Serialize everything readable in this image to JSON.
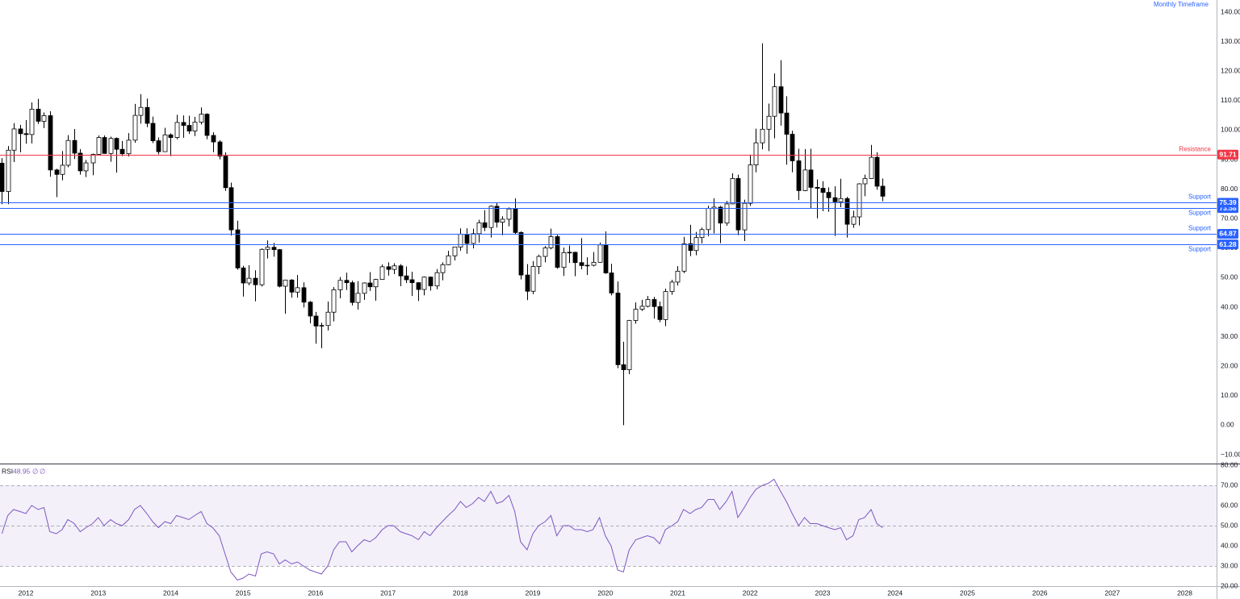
{
  "chart_data": [
    {
      "type": "candlestick",
      "annotation": "Monthly Timeframe",
      "x": [
        2011.67,
        2011.75,
        2011.83,
        2011.92,
        2012,
        2012.08,
        2012.17,
        2012.25,
        2012.33,
        2012.42,
        2012.5,
        2012.58,
        2012.67,
        2012.75,
        2012.83,
        2012.92,
        2013,
        2013.08,
        2013.17,
        2013.25,
        2013.33,
        2013.42,
        2013.5,
        2013.58,
        2013.67,
        2013.75,
        2013.83,
        2013.92,
        2014,
        2014.08,
        2014.17,
        2014.25,
        2014.33,
        2014.42,
        2014.5,
        2014.58,
        2014.67,
        2014.75,
        2014.83,
        2014.92,
        2015,
        2015.08,
        2015.17,
        2015.25,
        2015.33,
        2015.42,
        2015.5,
        2015.58,
        2015.67,
        2015.75,
        2015.83,
        2015.92,
        2016,
        2016.08,
        2016.17,
        2016.25,
        2016.33,
        2016.42,
        2016.5,
        2016.58,
        2016.67,
        2016.75,
        2016.83,
        2016.92,
        2017,
        2017.08,
        2017.17,
        2017.25,
        2017.33,
        2017.42,
        2017.5,
        2017.58,
        2017.67,
        2017.75,
        2017.83,
        2017.92,
        2018,
        2018.08,
        2018.17,
        2018.25,
        2018.33,
        2018.42,
        2018.5,
        2018.58,
        2018.67,
        2018.75,
        2018.83,
        2018.92,
        2019,
        2019.08,
        2019.17,
        2019.25,
        2019.33,
        2019.42,
        2019.5,
        2019.58,
        2019.67,
        2019.75,
        2019.83,
        2019.92,
        2020,
        2020.08,
        2020.17,
        2020.25,
        2020.33,
        2020.42,
        2020.5,
        2020.58,
        2020.67,
        2020.75,
        2020.83,
        2020.92,
        2021,
        2021.08,
        2021.17,
        2021.25,
        2021.33,
        2021.42,
        2021.5,
        2021.58,
        2021.67,
        2021.75,
        2021.83,
        2021.92,
        2022,
        2022.08,
        2022.17,
        2022.25,
        2022.33,
        2022.42,
        2022.5,
        2022.58,
        2022.67,
        2022.75,
        2022.83,
        2022.92,
        2023,
        2023.08,
        2023.17,
        2023.25,
        2023.33,
        2023.42,
        2023.5,
        2023.58,
        2023.67,
        2023.75,
        2023.83
      ],
      "open": [
        88.8,
        79.2,
        93.2,
        100.4,
        98.8,
        98.5,
        107.1,
        103.0,
        104.9,
        86.5,
        85.0,
        88.1,
        96.5,
        92.2,
        86.2,
        88.9,
        91.8,
        97.5,
        92.1,
        97.2,
        93.5,
        92.0,
        96.6,
        105.0,
        107.7,
        102.3,
        96.4,
        92.7,
        98.4,
        97.5,
        102.6,
        101.6,
        99.7,
        102.7,
        105.4,
        98.2,
        96.0,
        91.2,
        80.5,
        66.2,
        53.3,
        48.2,
        49.8,
        47.6,
        59.6,
        60.3,
        59.5,
        47.1,
        49.2,
        45.1,
        46.6,
        41.7,
        37.0,
        33.6,
        33.8,
        38.3,
        45.9,
        49.1,
        48.3,
        41.6,
        44.7,
        48.2,
        46.9,
        49.4,
        53.7,
        52.8,
        54.0,
        50.6,
        49.3,
        48.3,
        46.0,
        50.2,
        47.2,
        51.7,
        54.4,
        57.4,
        60.4,
        64.7,
        61.6,
        64.9,
        68.6,
        67.0,
        74.2,
        68.8,
        69.8,
        73.3,
        65.3,
        50.9,
        45.4,
        53.8,
        57.2,
        60.1,
        63.9,
        53.5,
        58.5,
        58.6,
        55.1,
        54.1,
        54.2,
        55.2,
        61.1,
        51.6,
        44.8,
        20.5,
        18.8,
        35.5,
        39.3,
        40.3,
        42.6,
        40.2,
        35.8,
        45.3,
        48.5,
        52.2,
        61.5,
        59.2,
        63.6,
        66.3,
        73.5,
        73.9,
        68.5,
        75.0,
        83.6,
        66.2,
        75.2,
        88.2,
        95.7,
        100.3,
        104.7,
        114.7,
        105.8,
        98.6,
        89.6,
        79.5,
        86.5,
        80.6,
        80.3,
        78.9,
        77.1,
        75.7,
        76.8,
        68.1,
        70.6,
        81.8,
        83.6,
        90.8,
        81.0
      ],
      "high": [
        90.5,
        94.6,
        102.4,
        101.8,
        103.4,
        109.4,
        110.6,
        106.0,
        106.4,
        86.9,
        92.9,
        98.3,
        100.4,
        93.6,
        89.9,
        92.1,
        98.2,
        98.2,
        97.8,
        97.5,
        96.3,
        99.0,
        108.9,
        112.2,
        110.7,
        104.6,
        97.5,
        100.8,
        98.9,
        105.2,
        105.0,
        104.9,
        104.5,
        107.7,
        105.7,
        99.3,
        96.6,
        92.5,
        82.2,
        69.3,
        54.0,
        54.2,
        52.5,
        59.9,
        62.6,
        61.8,
        59.7,
        49.3,
        49.5,
        50.9,
        48.4,
        42.1,
        38.4,
        34.7,
        41.9,
        46.8,
        50.2,
        51.7,
        49.0,
        48.8,
        48.4,
        51.9,
        49.6,
        54.5,
        55.2,
        54.9,
        54.6,
        53.8,
        52.0,
        48.5,
        50.4,
        50.4,
        52.9,
        55.2,
        59.1,
        60.5,
        66.7,
        66.7,
        66.6,
        69.6,
        72.9,
        74.5,
        75.3,
        70.8,
        73.8,
        76.9,
        65.7,
        54.6,
        55.6,
        57.8,
        60.7,
        66.6,
        64.5,
        60.2,
        60.9,
        58.8,
        63.4,
        56.9,
        58.7,
        61.9,
        65.7,
        54.7,
        48.7,
        28.3,
        35.7,
        41.6,
        42.5,
        43.8,
        43.5,
        41.9,
        46.3,
        49.3,
        53.9,
        63.8,
        67.9,
        65.5,
        67.0,
        74.4,
        76.9,
        74.3,
        76.0,
        85.4,
        84.9,
        76.4,
        91.7,
        100.5,
        129.4,
        109.0,
        119.2,
        123.7,
        111.5,
        99.8,
        93.7,
        93.6,
        93.7,
        83.3,
        82.7,
        80.6,
        81.0,
        83.5,
        77.4,
        72.7,
        82.0,
        84.9,
        95.0,
        92.5,
        83.6
      ],
      "low": [
        74.9,
        74.9,
        89.2,
        92.5,
        95.4,
        95.5,
        102.1,
        100.7,
        84.2,
        77.3,
        83.0,
        87.4,
        90.2,
        84.9,
        84.1,
        84.7,
        91.7,
        92.0,
        89.3,
        85.6,
        91.2,
        91.1,
        95.7,
        102.2,
        101.0,
        95.6,
        91.8,
        92.6,
        91.2,
        96.9,
        97.4,
        98.7,
        98.0,
        101.9,
        96.9,
        92.5,
        90.1,
        79.4,
        64.3,
        52.7,
        43.6,
        47.4,
        42.0,
        47.0,
        56.5,
        57.1,
        46.7,
        37.8,
        43.2,
        43.2,
        39.9,
        34.5,
        27.6,
        26.1,
        32.1,
        35.2,
        43.0,
        45.8,
        40.6,
        39.2,
        42.5,
        45.5,
        42.2,
        49.3,
        50.7,
        51.2,
        47.1,
        48.2,
        43.8,
        42.1,
        44.0,
        45.6,
        46.1,
        49.1,
        54.2,
        55.8,
        59.1,
        58.1,
        59.9,
        61.9,
        65.8,
        63.6,
        67.0,
        64.4,
        67.4,
        64.8,
        49.4,
        42.4,
        44.4,
        51.2,
        55.2,
        59.6,
        53.0,
        50.6,
        55.0,
        50.5,
        52.8,
        50.9,
        53.8,
        55.1,
        51.3,
        44.0,
        19.3,
        0.0,
        17.3,
        34.4,
        38.7,
        39.9,
        36.1,
        34.9,
        33.6,
        44.2,
        47.3,
        51.5,
        57.3,
        57.6,
        61.6,
        64.0,
        65.0,
        61.7,
        67.6,
        74.9,
        64.4,
        62.4,
        74.3,
        85.7,
        93.5,
        92.9,
        97.2,
        101.5,
        88.3,
        85.7,
        76.3,
        79.3,
        73.6,
        70.1,
        72.5,
        72.3,
        64.1,
        73.9,
        63.6,
        66.9,
        67.7,
        77.6,
        83.5,
        79.8,
        75.9
      ],
      "close": [
        79.2,
        93.2,
        100.4,
        98.8,
        98.5,
        107.1,
        103.0,
        104.9,
        86.5,
        85.0,
        88.1,
        96.5,
        92.2,
        86.2,
        88.9,
        91.8,
        97.5,
        92.1,
        97.2,
        93.5,
        92.0,
        96.6,
        105.0,
        107.7,
        102.3,
        96.4,
        92.7,
        98.4,
        97.5,
        102.6,
        101.6,
        99.7,
        102.7,
        105.4,
        98.2,
        96.0,
        91.2,
        80.5,
        66.2,
        53.3,
        48.2,
        49.8,
        47.6,
        59.6,
        60.3,
        59.5,
        47.1,
        49.2,
        45.1,
        46.6,
        41.7,
        37.0,
        33.6,
        33.8,
        38.3,
        45.9,
        49.1,
        48.3,
        41.6,
        44.7,
        48.2,
        46.9,
        49.4,
        53.7,
        52.8,
        54.0,
        50.6,
        49.3,
        48.3,
        46.0,
        50.2,
        47.2,
        51.7,
        54.4,
        57.4,
        60.4,
        64.7,
        61.6,
        64.9,
        68.6,
        67.0,
        74.2,
        68.8,
        69.8,
        73.3,
        65.3,
        50.9,
        45.4,
        53.8,
        57.2,
        60.1,
        63.9,
        53.5,
        58.5,
        58.6,
        55.1,
        54.1,
        54.2,
        55.2,
        61.1,
        51.6,
        44.8,
        20.5,
        18.8,
        35.5,
        39.3,
        40.3,
        42.6,
        40.2,
        35.8,
        45.3,
        48.5,
        52.2,
        61.5,
        59.2,
        63.6,
        66.3,
        73.5,
        73.9,
        68.5,
        75.0,
        83.6,
        66.2,
        75.2,
        88.2,
        95.7,
        100.3,
        104.7,
        114.7,
        105.8,
        98.6,
        89.6,
        79.5,
        86.5,
        80.6,
        80.3,
        78.9,
        77.1,
        75.7,
        76.8,
        68.1,
        70.6,
        81.8,
        83.6,
        90.8,
        81.0,
        77.6
      ],
      "up_color": "#ffffff",
      "down_color": "#000000",
      "wick_color": "#000000",
      "xlim": [
        2011.643,
        2028.44
      ],
      "xticks": [
        2012,
        2013,
        2014,
        2015,
        2016,
        2017,
        2018,
        2019,
        2020,
        2021,
        2022,
        2023,
        2024,
        2025,
        2026,
        2027,
        2028
      ],
      "ylim": [
        -13.0,
        144.1
      ],
      "yticks": [
        {
          "value": -10,
          "label": "−10.00"
        },
        {
          "value": 0,
          "label": "0.00"
        },
        {
          "value": 10,
          "label": "10.00"
        },
        {
          "value": 20,
          "label": "20.00"
        },
        {
          "value": 30,
          "label": "30.00"
        },
        {
          "value": 40,
          "label": "40.00"
        },
        {
          "value": 50,
          "label": "50.00"
        },
        {
          "value": 60,
          "label": "60.00"
        },
        {
          "value": 70,
          "label": "70.00"
        },
        {
          "value": 80,
          "label": "80.00"
        },
        {
          "value": 90,
          "label": "90.00"
        },
        {
          "value": 100,
          "label": "100.00"
        },
        {
          "value": 110,
          "label": "110.00"
        },
        {
          "value": 120,
          "label": "120.00"
        },
        {
          "value": 130,
          "label": "130.00"
        },
        {
          "value": 140,
          "label": "140.00"
        }
      ],
      "grid": false,
      "levels": [
        {
          "value": 91.71,
          "label": "Resistance",
          "color": "#f23645"
        },
        {
          "value": 75.39,
          "label": "Support",
          "color": "#2962ff"
        },
        {
          "value": 73.58,
          "label": "Support",
          "color": "#2962ff"
        },
        {
          "value": 64.87,
          "label": "Support",
          "color": "#2962ff"
        },
        {
          "value": 61.28,
          "label": "Support",
          "color": "#2962ff"
        }
      ]
    },
    {
      "type": "line",
      "title": "RSI",
      "params": [
        "∅",
        "∅"
      ],
      "values": [
        46,
        55,
        58,
        57,
        56,
        60,
        58,
        59,
        47,
        46,
        48,
        53,
        51,
        47,
        49,
        51,
        54,
        50,
        53,
        51,
        50,
        53,
        58,
        60,
        56,
        52,
        49,
        52,
        51,
        55,
        54,
        53,
        55,
        57,
        51,
        49,
        45,
        36,
        27,
        23,
        24,
        26,
        25,
        36,
        37,
        36,
        31,
        33,
        31,
        32,
        30,
        28,
        27,
        26,
        30,
        38,
        42,
        42,
        37,
        40,
        43,
        42,
        44,
        48,
        50,
        50,
        47,
        46,
        45,
        43,
        47,
        45,
        49,
        52,
        55,
        58,
        62,
        59,
        61,
        64,
        62,
        67,
        61,
        62,
        65,
        57,
        42,
        38,
        46,
        50,
        52,
        55,
        45,
        50,
        50,
        48,
        48,
        47,
        48,
        54,
        45,
        40,
        28,
        27,
        38,
        43,
        44,
        45,
        44,
        41,
        48,
        50,
        52,
        58,
        56,
        58,
        59,
        63,
        63,
        58,
        62,
        67,
        54,
        59,
        64,
        68,
        70,
        71,
        73,
        67,
        62,
        56,
        50,
        54,
        51,
        51,
        50,
        49,
        48,
        49,
        43,
        45,
        53,
        54,
        58,
        51,
        48.95
      ],
      "color": "#7e57c2",
      "band": [
        30,
        70
      ],
      "band_color": "#7e57c2",
      "levels": [
        70,
        50,
        30
      ],
      "ylim": [
        20,
        80.8
      ],
      "yticks": [
        {
          "value": 20,
          "label": "20.00"
        },
        {
          "value": 30,
          "label": "30.00"
        },
        {
          "value": 40,
          "label": "40.00"
        },
        {
          "value": 50,
          "label": "50.00"
        },
        {
          "value": 60,
          "label": "60.00"
        },
        {
          "value": 70,
          "label": "70.00"
        },
        {
          "value": 80,
          "label": "80.00"
        }
      ]
    }
  ]
}
